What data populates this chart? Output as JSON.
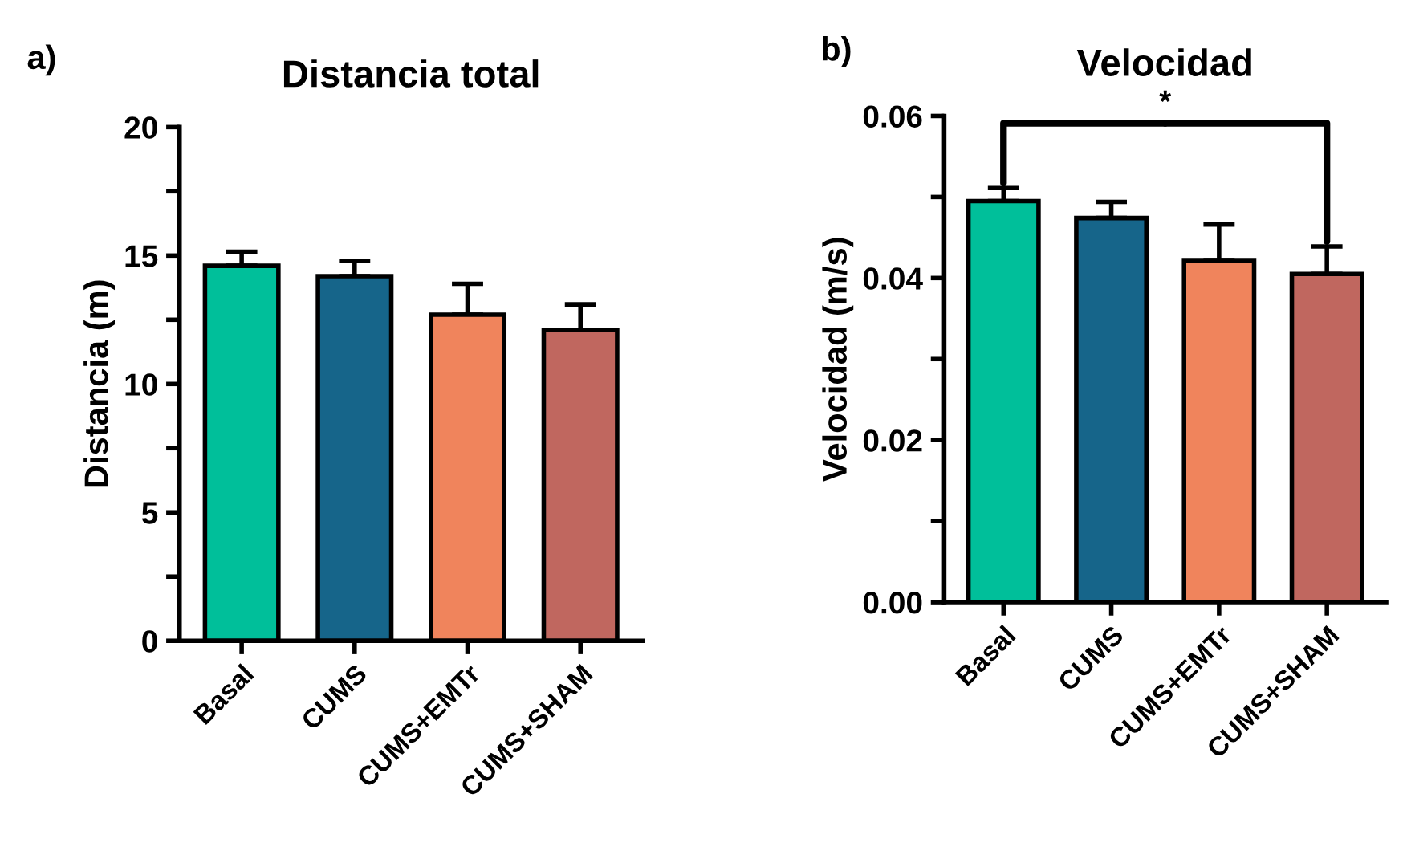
{
  "chart_data": [
    {
      "type": "bar",
      "title": "Distancia total",
      "ylabel": "Distancia (m)",
      "categories": [
        "Basal",
        "CUMS",
        "CUMS+EMTr",
        "CUMS+SHAM"
      ],
      "values": [
        14.6,
        14.2,
        12.7,
        12.1
      ],
      "errors": [
        [
          14.6,
          15.15
        ],
        [
          14.2,
          14.8
        ],
        [
          12.7,
          13.9
        ],
        [
          12.1,
          13.1
        ]
      ],
      "colors": [
        "#00bf9a",
        "#16658a",
        "#f0845c",
        "#c0675f"
      ],
      "ylim": [
        0,
        20
      ],
      "yticks": [
        0,
        {
          "value": 2.5,
          "label": null
        },
        5,
        {
          "value": 7.5,
          "label": null
        },
        10,
        {
          "value": 12.5,
          "label": null
        },
        15,
        {
          "value": 17.5,
          "label": null
        },
        20
      ],
      "annotations": [
        "a)"
      ]
    },
    {
      "type": "bar",
      "title": "Velocidad",
      "ylabel": "Velocidad (m/s)",
      "categories": [
        "Basal",
        "CUMS",
        "CUMS+EMTr",
        "CUMS+SHAM"
      ],
      "values": [
        0.0495,
        0.0474,
        0.0422,
        0.0405
      ],
      "errors": [
        [
          0.0495,
          0.0511
        ],
        [
          0.0474,
          0.0494
        ],
        [
          0.0422,
          0.0466
        ],
        [
          0.0405,
          0.0439
        ]
      ],
      "colors": [
        "#00bf9a",
        "#16658a",
        "#f0845c",
        "#c0675f"
      ],
      "ylim": [
        0,
        0.06
      ],
      "yticks": [
        {
          "value": 0,
          "label": "0.00"
        },
        {
          "value": 0.01,
          "label": null
        },
        {
          "value": 0.02,
          "label": "0.02"
        },
        {
          "value": 0.03,
          "label": null
        },
        {
          "value": 0.04,
          "label": "0.04"
        },
        {
          "value": 0.05,
          "label": null
        },
        {
          "value": 0.06,
          "label": "0.06"
        }
      ],
      "annotations": [
        "b)",
        {
          "text": "*",
          "x": "Basal",
          "y": 0.0511
        }
      ]
    }
  ]
}
